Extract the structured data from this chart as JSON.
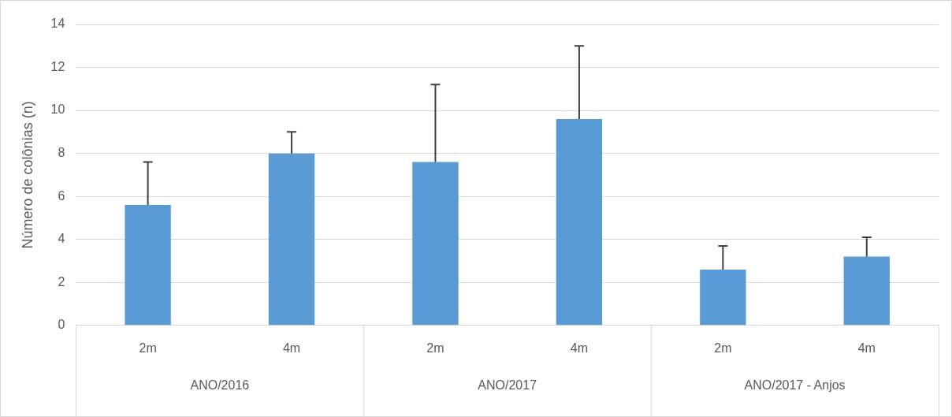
{
  "chart_data": {
    "type": "bar",
    "ylabel": "Número de colônias (n)",
    "categories": [
      "2m",
      "4m",
      "2m",
      "4m",
      "2m",
      "4m"
    ],
    "values": [
      5.6,
      8.0,
      7.6,
      9.6,
      2.6,
      3.2
    ],
    "errors": [
      [
        5.6,
        7.6
      ],
      [
        8.0,
        9.0
      ],
      [
        7.6,
        11.2
      ],
      [
        9.6,
        13.0
      ],
      [
        2.6,
        3.7
      ],
      [
        3.2,
        4.1
      ]
    ],
    "color": "#5b9bd5",
    "ylim": [
      0,
      14
    ],
    "yticks": [
      0,
      2,
      4,
      6,
      8,
      10,
      12,
      14
    ],
    "grid": "y",
    "annotations": [
      "ANO/2016",
      "ANO/2017",
      "ANO/2017 - Anjos"
    ]
  }
}
